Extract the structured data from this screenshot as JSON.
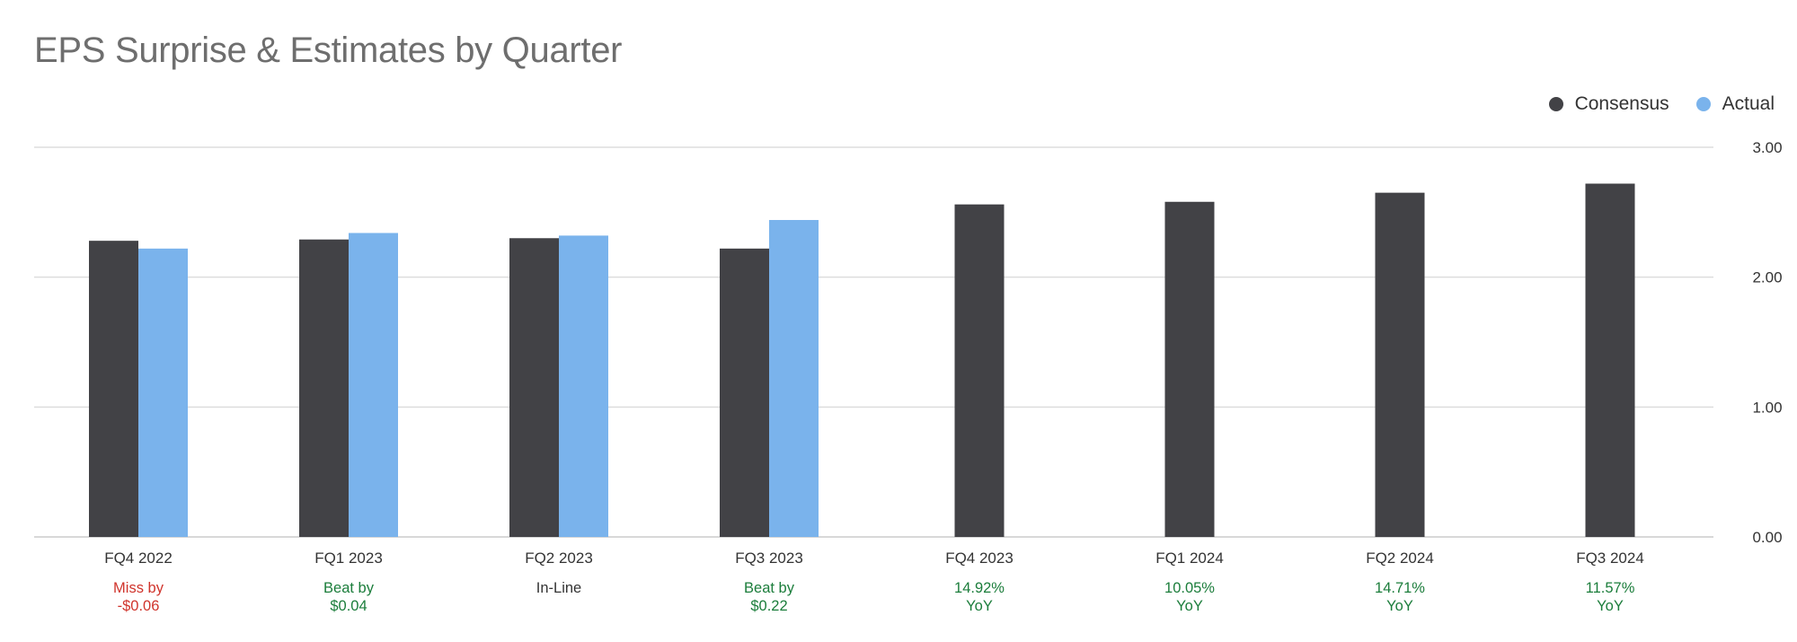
{
  "title": "EPS Surprise & Estimates by Quarter",
  "legend": {
    "consensus_label": "Consensus",
    "actual_label": "Actual"
  },
  "colors": {
    "consensus": "#424246",
    "actual": "#7ab3ec",
    "grid": "#dddddd",
    "title": "#6e6e6e",
    "text": "#333333",
    "beat": "#1b7d3b",
    "miss": "#d0342c",
    "neutral": "#333333"
  },
  "chart_data": {
    "type": "bar",
    "title": "EPS Surprise & Estimates by Quarter",
    "xlabel": "",
    "ylabel": "",
    "ylim": [
      0,
      3
    ],
    "y_ticks": [
      "0.00",
      "1.00",
      "2.00",
      "3.00"
    ],
    "y_axis_position": "right",
    "grid": true,
    "legend_position": "top-right",
    "categories": [
      "FQ4 2022",
      "FQ1 2023",
      "FQ2 2023",
      "FQ3 2023",
      "FQ4 2023",
      "FQ1 2024",
      "FQ2 2024",
      "FQ3 2024"
    ],
    "series": [
      {
        "name": "Consensus",
        "values": [
          2.28,
          2.29,
          2.3,
          2.22,
          2.56,
          2.58,
          2.65,
          2.72
        ]
      },
      {
        "name": "Actual",
        "values": [
          2.22,
          2.34,
          2.32,
          2.44,
          null,
          null,
          null,
          null
        ]
      }
    ],
    "annotations": [
      {
        "lines": [
          "Miss by",
          "-$0.06"
        ],
        "status": "miss"
      },
      {
        "lines": [
          "Beat by",
          "$0.04"
        ],
        "status": "beat"
      },
      {
        "lines": [
          "In-Line"
        ],
        "status": "neutral"
      },
      {
        "lines": [
          "Beat by",
          "$0.22"
        ],
        "status": "beat"
      },
      {
        "lines": [
          "14.92%",
          "YoY"
        ],
        "status": "beat"
      },
      {
        "lines": [
          "10.05%",
          "YoY"
        ],
        "status": "beat"
      },
      {
        "lines": [
          "14.71%",
          "YoY"
        ],
        "status": "beat"
      },
      {
        "lines": [
          "11.57%",
          "YoY"
        ],
        "status": "beat"
      }
    ]
  }
}
